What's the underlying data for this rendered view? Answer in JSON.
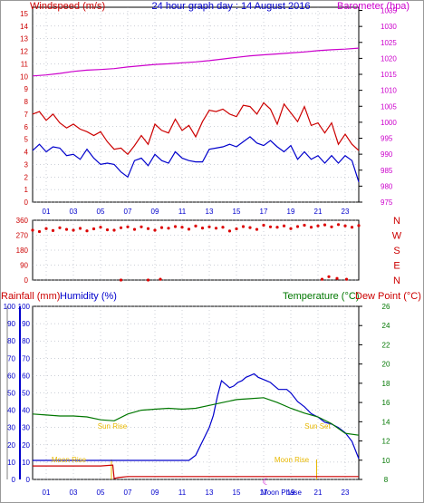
{
  "header": {
    "left_label": "Windspeed (m/s)",
    "center_title": "24 hour graph day : 14 August 2016",
    "right_label": "Barometer (hpa)"
  },
  "colors": {
    "windspeed": "#cc0000",
    "gust": "#cc0000",
    "avg_wind": "#0000cc",
    "barometer": "#cc00cc",
    "direction": "#dd0000",
    "rainfall": "#cc0000",
    "humidity": "#0000cc",
    "temperature": "#007700",
    "dewpoint": "#cc0000",
    "sun": "#e8b800",
    "grid": "#9aa0b0"
  },
  "chart_data": [
    {
      "type": "line",
      "panel": "wind_barometer",
      "x_ticks": [
        "01",
        "03",
        "05",
        "07",
        "09",
        "11",
        "13",
        "15",
        "17",
        "19",
        "21",
        "23"
      ],
      "xlim": [
        0,
        24
      ],
      "left_axis": {
        "ticks": [
          0,
          1,
          2,
          3,
          4,
          5,
          6,
          7,
          8,
          9,
          10,
          11,
          12,
          13,
          14,
          15
        ],
        "ylim": [
          0,
          15.5
        ]
      },
      "right_axis": {
        "ticks": [
          975,
          980,
          985,
          990,
          995,
          1000,
          1005,
          1010,
          1015,
          1020,
          1025,
          1030,
          1035
        ],
        "ylim": [
          975,
          1036
        ]
      },
      "series": [
        {
          "key": "gust",
          "axis": "left",
          "x": [
            0.0,
            0.5,
            1.0,
            1.5,
            2.0,
            2.5,
            3.0,
            3.5,
            4.0,
            4.5,
            5.0,
            5.5,
            6.0,
            6.5,
            7.0,
            7.5,
            8.0,
            8.5,
            9.0,
            9.5,
            10.0,
            10.5,
            11.0,
            11.5,
            12.0,
            12.5,
            13.0,
            13.5,
            14.0,
            14.5,
            15.0,
            15.5,
            16.0,
            16.5,
            17.0,
            17.5,
            18.0,
            18.5,
            19.0,
            19.5,
            20.0,
            20.5,
            21.0,
            21.5,
            22.0,
            22.5,
            23.0,
            23.5,
            24.0
          ],
          "values": [
            7.0,
            7.2,
            6.5,
            7.0,
            6.3,
            5.9,
            6.2,
            5.8,
            5.6,
            5.3,
            5.6,
            4.8,
            4.2,
            4.3,
            3.8,
            4.5,
            5.3,
            4.6,
            6.2,
            5.7,
            5.5,
            6.6,
            5.7,
            6.1,
            5.2,
            6.4,
            7.3,
            7.2,
            7.4,
            7.0,
            6.8,
            7.7,
            7.6,
            7.0,
            7.9,
            7.4,
            6.2,
            7.8,
            7.1,
            6.4,
            7.6,
            6.1,
            6.3,
            5.5,
            6.3,
            4.6,
            5.4,
            4.6,
            4.1
          ]
        },
        {
          "key": "avg_wind",
          "axis": "left",
          "x": [
            0.0,
            0.5,
            1.0,
            1.5,
            2.0,
            2.5,
            3.0,
            3.5,
            4.0,
            4.5,
            5.0,
            5.5,
            6.0,
            6.5,
            7.0,
            7.5,
            8.0,
            8.5,
            9.0,
            9.5,
            10.0,
            10.5,
            11.0,
            11.5,
            12.0,
            12.5,
            13.0,
            13.5,
            14.0,
            14.5,
            15.0,
            15.5,
            16.0,
            16.5,
            17.0,
            17.5,
            18.0,
            18.5,
            19.0,
            19.5,
            20.0,
            20.5,
            21.0,
            21.5,
            22.0,
            22.5,
            23.0,
            23.5,
            24.0
          ],
          "values": [
            4.1,
            4.6,
            4.0,
            4.4,
            4.3,
            3.7,
            3.8,
            3.4,
            4.2,
            3.5,
            3.0,
            3.1,
            3.0,
            2.4,
            2.0,
            3.3,
            3.5,
            2.9,
            3.8,
            3.3,
            3.1,
            4.0,
            3.5,
            3.3,
            3.2,
            3.2,
            4.2,
            4.3,
            4.4,
            4.6,
            4.4,
            4.8,
            5.2,
            4.7,
            4.5,
            4.9,
            4.4,
            4.0,
            4.5,
            3.4,
            4.0,
            3.4,
            3.7,
            3.1,
            3.7,
            3.1,
            3.7,
            3.3,
            1.6
          ]
        },
        {
          "key": "barometer",
          "axis": "right",
          "x": [
            0,
            1,
            2,
            3,
            4,
            5,
            6,
            7,
            8,
            9,
            10,
            11,
            12,
            13,
            14,
            15,
            16,
            17,
            18,
            19,
            20,
            21,
            22,
            23,
            24
          ],
          "values": [
            1014.5,
            1014.8,
            1015.3,
            1015.9,
            1016.3,
            1016.5,
            1016.8,
            1017.3,
            1017.7,
            1018.1,
            1018.3,
            1018.6,
            1018.9,
            1019.3,
            1019.8,
            1020.3,
            1020.8,
            1021.1,
            1021.4,
            1021.7,
            1022.0,
            1022.4,
            1022.7,
            1022.9,
            1023.2
          ]
        }
      ]
    },
    {
      "type": "scatter",
      "panel": "wind_direction",
      "x_ticks": [
        "01",
        "03",
        "05",
        "07",
        "09",
        "11",
        "13",
        "15",
        "17",
        "19",
        "21",
        "23"
      ],
      "xlim": [
        0,
        24
      ],
      "left_axis": {
        "ticks": [
          0,
          90,
          180,
          270,
          360
        ],
        "ylim": [
          0,
          360
        ]
      },
      "right_axis": {
        "ticks": [
          "N",
          "E",
          "S",
          "W",
          "N"
        ]
      },
      "series": [
        {
          "key": "direction",
          "x": [
            0.0,
            0.5,
            1.0,
            1.5,
            2.0,
            2.5,
            3.0,
            3.5,
            4.0,
            4.5,
            5.0,
            5.5,
            6.0,
            6.5,
            7.0,
            7.5,
            8.0,
            8.5,
            9.0,
            9.5,
            10.0,
            10.5,
            11.0,
            11.5,
            12.0,
            12.5,
            13.0,
            13.5,
            14.0,
            14.5,
            15.0,
            15.5,
            16.0,
            16.5,
            17.0,
            17.5,
            18.0,
            18.5,
            19.0,
            19.5,
            20.0,
            20.5,
            21.0,
            21.5,
            22.0,
            22.5,
            23.0,
            23.5,
            24.0
          ],
          "values": [
            300,
            292,
            310,
            298,
            315,
            305,
            300,
            311,
            296,
            308,
            318,
            302,
            300,
            315,
            320,
            305,
            320,
            310,
            300,
            316,
            312,
            322,
            318,
            306,
            325,
            313,
            320,
            312,
            318,
            295,
            308,
            322,
            316,
            305,
            330,
            320,
            318,
            326,
            310,
            322,
            330,
            318,
            326,
            332,
            320,
            334,
            326,
            318,
            328
          ]
        },
        {
          "key": "direction_north",
          "x": [
            6.5,
            8.5,
            9.4,
            21.3,
            21.8,
            22.4,
            23.1
          ],
          "values": [
            0,
            0,
            5,
            5,
            20,
            10,
            5
          ]
        }
      ]
    },
    {
      "type": "line",
      "panel": "rain_humidity_temperature",
      "x_ticks": [
        "01",
        "03",
        "05",
        "07",
        "09",
        "11",
        "13",
        "15",
        "17",
        "19",
        "21",
        "23"
      ],
      "xlim": [
        0,
        24
      ],
      "rain_axis": {
        "ticks": [
          0,
          10,
          20,
          30,
          40,
          50,
          60,
          70,
          80,
          90,
          100
        ],
        "ylim": [
          0,
          100
        ]
      },
      "humidity_axis": {
        "ticks": [
          0,
          10,
          20,
          30,
          40,
          50,
          60,
          70,
          80,
          90,
          100
        ],
        "ylim": [
          0,
          100
        ]
      },
      "temperature_axis": {
        "ticks": [
          8,
          10,
          12,
          14,
          16,
          18,
          20,
          22,
          24,
          26
        ],
        "ylim": [
          8,
          26
        ]
      },
      "series": [
        {
          "key": "humidity",
          "axis": "humidity",
          "x": [
            0,
            1,
            2,
            3,
            4,
            5,
            6,
            7,
            8,
            9,
            10,
            11,
            11.5,
            12,
            12.5,
            13,
            13.3,
            13.6,
            13.9,
            14.2,
            14.5,
            14.8,
            15.1,
            15.4,
            15.7,
            16.0,
            16.3,
            16.6,
            16.9,
            17.2,
            17.5,
            17.8,
            18.1,
            18.4,
            18.7,
            19.0,
            19.5,
            20,
            20.5,
            21,
            21.5,
            22,
            22.5,
            23,
            23.5,
            24
          ],
          "values": [
            11,
            11,
            11,
            11,
            11,
            11,
            11,
            11,
            11,
            11,
            11,
            11,
            11,
            14,
            22,
            30,
            37,
            48,
            57,
            55,
            53,
            54,
            56,
            57,
            59,
            60,
            61,
            59,
            58,
            57,
            56,
            54,
            52,
            52,
            52,
            50,
            45,
            42,
            38,
            36,
            33,
            32,
            30,
            27,
            22,
            12
          ]
        },
        {
          "key": "temperature",
          "axis": "temperature",
          "x": [
            0,
            1,
            2,
            3,
            4,
            5,
            6,
            7,
            8,
            9,
            10,
            11,
            12,
            13,
            14,
            15,
            16,
            17,
            18,
            19,
            20,
            21,
            22,
            23,
            24
          ],
          "values": [
            14.8,
            14.7,
            14.6,
            14.6,
            14.5,
            14.2,
            14.1,
            14.8,
            15.2,
            15.3,
            15.4,
            15.3,
            15.4,
            15.7,
            16.0,
            16.3,
            16.4,
            16.5,
            16.0,
            15.4,
            14.9,
            14.5,
            13.8,
            12.8,
            12.6
          ]
        },
        {
          "key": "dewpoint",
          "axis": "temperature",
          "x": [
            0,
            1,
            2,
            3,
            4,
            5,
            5.9,
            6.0,
            6.3,
            7,
            8,
            9,
            10,
            11,
            12,
            13,
            14,
            15,
            16,
            17,
            18,
            19,
            20,
            21,
            22,
            23,
            24
          ],
          "values": [
            9.4,
            9.4,
            9.4,
            9.4,
            9.4,
            9.4,
            9.5,
            8.1,
            8.2,
            8.3,
            8.3,
            8.3,
            8.3,
            8.3,
            8.3,
            8.3,
            8.3,
            8.3,
            8.3,
            8.3,
            8.3,
            8.3,
            8.3,
            8.3,
            8.3,
            8.3,
            8.3
          ]
        }
      ],
      "markers": [
        {
          "key": "moon_rise",
          "x": 1.2,
          "label": "Moon Rise"
        },
        {
          "key": "sun_rise",
          "x": 5.8,
          "label": "Sun Rise"
        },
        {
          "key": "moon_set",
          "x": 17.6,
          "label": "Moon Rise"
        },
        {
          "key": "sun_set",
          "x": 20.9,
          "label": "Sun Set"
        },
        {
          "key": "moon_phase",
          "x": 18.3,
          "label": "Moon Phase"
        }
      ]
    }
  ],
  "lower_header": {
    "rainfall_label": "Rainfall (mm)",
    "humidity_label": "Humidity (%)",
    "temperature_label": "Temperature (°C)",
    "dewpoint_label": "Dew Point (°C)"
  }
}
